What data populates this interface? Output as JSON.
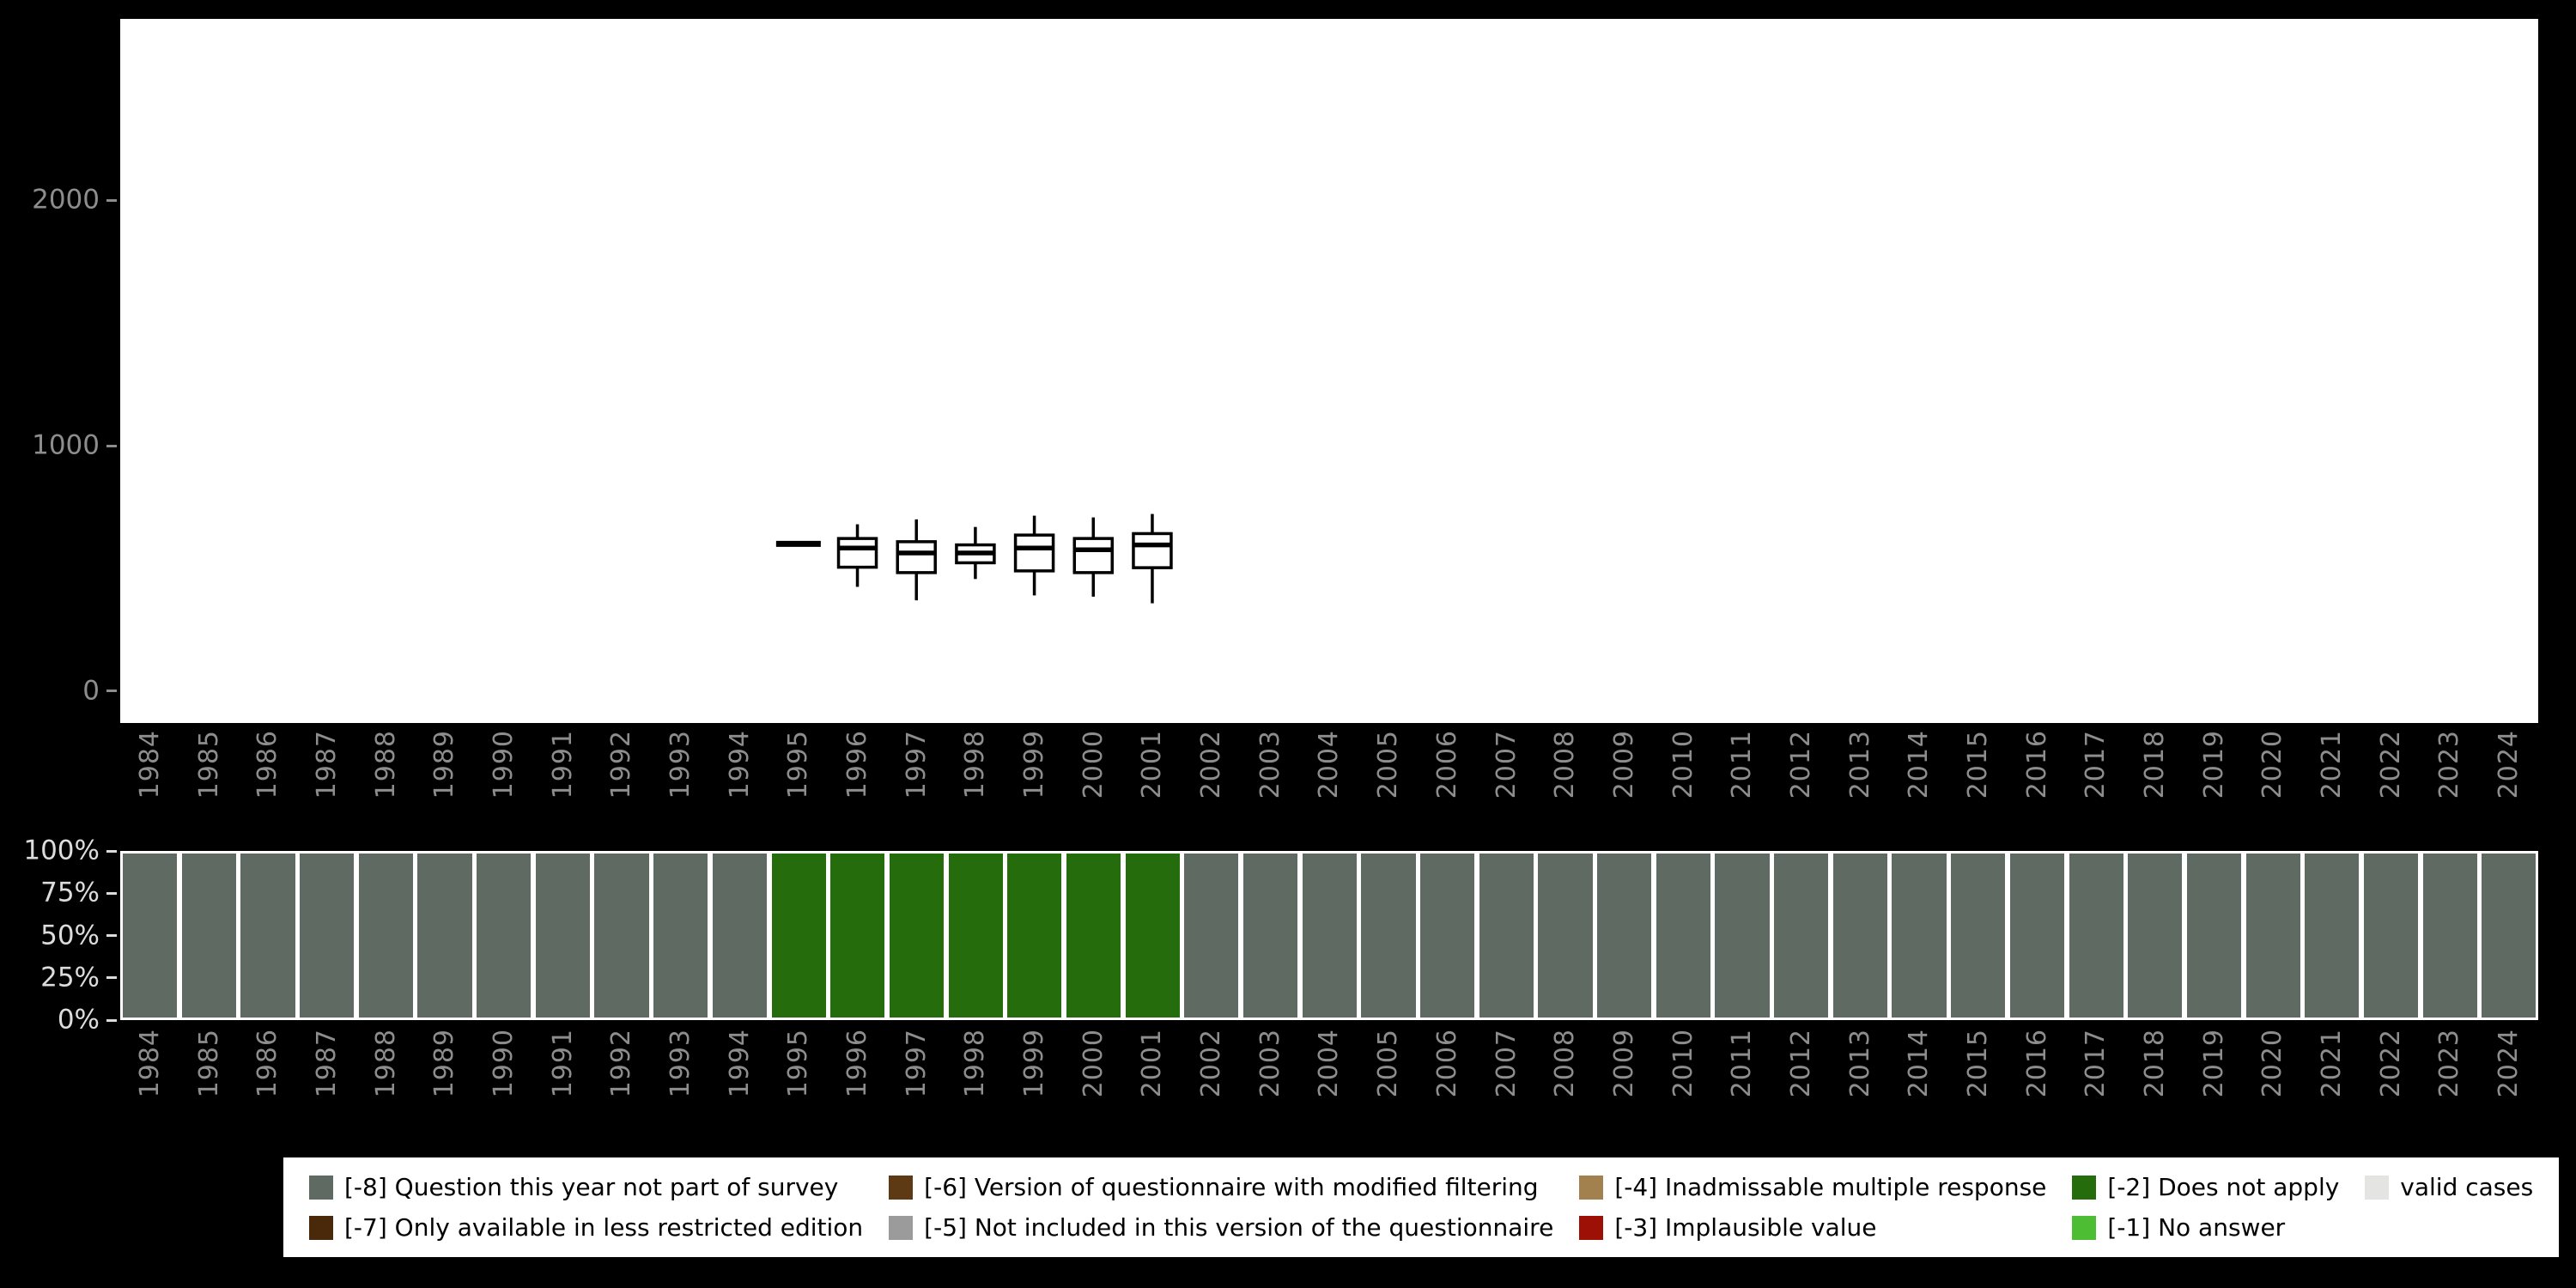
{
  "colors": {
    "page_background": "#000000",
    "plot_background": "#ffffff",
    "axis_text_gray": "#8d8d8d",
    "axis_text_light": "#dcdcdc",
    "box_stroke": "#000000",
    "bar_border": "#ffffff"
  },
  "chart_data": [
    {
      "type": "boxplot",
      "title": "",
      "xlabel": "",
      "ylabel": "",
      "x_years": [
        1984,
        1985,
        1986,
        1987,
        1988,
        1989,
        1990,
        1991,
        1992,
        1993,
        1994,
        1995,
        1996,
        1997,
        1998,
        1999,
        2000,
        2001,
        2002,
        2003,
        2004,
        2005,
        2006,
        2007,
        2008,
        2009,
        2010,
        2011,
        2012,
        2013,
        2014,
        2015,
        2016,
        2017,
        2018,
        2019,
        2020,
        2021,
        2022,
        2023,
        2024
      ],
      "ylim": [
        -130,
        2740
      ],
      "yticks": [
        {
          "value": 0,
          "label": "0"
        },
        {
          "value": 1000,
          "label": "1000"
        },
        {
          "value": 2000,
          "label": "2000"
        }
      ],
      "grid": false,
      "boxes": [
        {
          "year": 1995,
          "low": 600,
          "q1": 600,
          "median": 600,
          "q3": 600,
          "high": 600
        },
        {
          "year": 1996,
          "low": 425,
          "q1": 505,
          "median": 583,
          "q3": 622,
          "high": 680
        },
        {
          "year": 1997,
          "low": 370,
          "q1": 483,
          "median": 563,
          "q3": 609,
          "high": 700
        },
        {
          "year": 1998,
          "low": 457,
          "q1": 523,
          "median": 563,
          "q3": 596,
          "high": 669
        },
        {
          "year": 1999,
          "low": 390,
          "q1": 490,
          "median": 583,
          "q3": 636,
          "high": 715
        },
        {
          "year": 2000,
          "low": 385,
          "q1": 483,
          "median": 576,
          "q3": 622,
          "high": 708
        },
        {
          "year": 2001,
          "low": 358,
          "q1": 503,
          "median": 596,
          "q3": 642,
          "high": 722
        }
      ]
    },
    {
      "type": "bar",
      "subtype": "stacked-100pct-missingness-by-year",
      "title": "",
      "categories": [
        1984,
        1985,
        1986,
        1987,
        1988,
        1989,
        1990,
        1991,
        1992,
        1993,
        1994,
        1995,
        1996,
        1997,
        1998,
        1999,
        2000,
        2001,
        2002,
        2003,
        2004,
        2005,
        2006,
        2007,
        2008,
        2009,
        2010,
        2011,
        2012,
        2013,
        2014,
        2015,
        2016,
        2017,
        2018,
        2019,
        2020,
        2021,
        2022,
        2023,
        2024
      ],
      "yticks": [
        {
          "pct": 100,
          "label": "100%"
        },
        {
          "pct": 75,
          "label": "75%"
        },
        {
          "pct": 50,
          "label": "50%"
        },
        {
          "pct": 25,
          "label": "25%"
        },
        {
          "pct": 0,
          "label": "0%"
        }
      ],
      "bar_codes": [
        "-8",
        "-8",
        "-8",
        "-8",
        "-8",
        "-8",
        "-8",
        "-8",
        "-8",
        "-8",
        "-8",
        "-2",
        "-2",
        "-2",
        "-2",
        "-2",
        "-2",
        "-2",
        "-8",
        "-8",
        "-8",
        "-8",
        "-8",
        "-8",
        "-8",
        "-8",
        "-8",
        "-8",
        "-8",
        "-8",
        "-8",
        "-8",
        "-8",
        "-8",
        "-8",
        "-8",
        "-8",
        "-8",
        "-8",
        "-8",
        "-8"
      ],
      "bar_pct": 100
    }
  ],
  "legend": {
    "items": [
      {
        "code": "-8",
        "label": "[-8] Question this year not part of survey",
        "color": "#5e6a62"
      },
      {
        "code": "-6",
        "label": "[-6] Version of questionnaire with modified filtering",
        "color": "#5e3a14"
      },
      {
        "code": "-4",
        "label": "[-4] Inadmissable multiple response",
        "color": "#a3814e"
      },
      {
        "code": "-2",
        "label": "[-2] Does not apply",
        "color": "#256c0c"
      },
      {
        "code": "valid",
        "label": "valid cases",
        "color": "#e4e4e2"
      },
      {
        "code": "-7",
        "label": "[-7] Only available in less restricted edition",
        "color": "#49290a"
      },
      {
        "code": "-5",
        "label": "[-5] Not included in this version of the questionnaire",
        "color": "#9b9b9b"
      },
      {
        "code": "-3",
        "label": "[-3] Implausible value",
        "color": "#9c1006"
      },
      {
        "code": "-1",
        "label": "[-1] No answer",
        "color": "#4dbd33"
      }
    ]
  }
}
